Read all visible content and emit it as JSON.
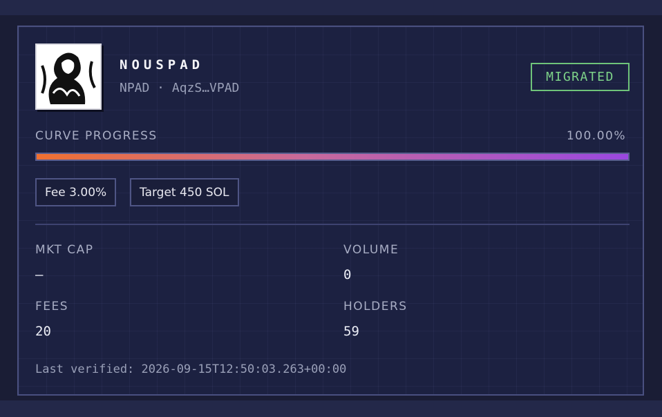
{
  "token": {
    "name": "NOUSPAD",
    "subtitle": "NPAD · AqzS…VPAD",
    "status": "MIGRATED"
  },
  "progress": {
    "label": "CURVE PROGRESS",
    "value": 100,
    "value_label": "100.00%"
  },
  "chips": [
    "Fee 3.00%",
    "Target 450 SOL"
  ],
  "stats": [
    {
      "label": "MKT CAP",
      "value": "—"
    },
    {
      "label": "VOLUME",
      "value": "0"
    },
    {
      "label": "FEES",
      "value": "20"
    },
    {
      "label": "HOLDERS",
      "value": "59"
    }
  ],
  "footer": "Last verified: 2026-09-15T12:50:03.263+00:00"
}
